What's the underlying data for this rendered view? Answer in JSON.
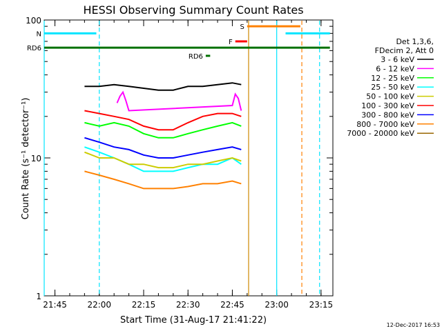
{
  "chart_data": {
    "type": "line",
    "title": "HESSI Observing Summary Count Rates",
    "xlabel": "Start Time (31-Aug-17 21:41:22)",
    "ylabel": "Count Rate (s⁻¹ detector⁻¹)",
    "y_scale": "log",
    "ylim": [
      1,
      100
    ],
    "xlim": [
      "21:41:22",
      "23:19:00"
    ],
    "x_ticks": [
      "21:45",
      "22:00",
      "22:15",
      "22:30",
      "22:45",
      "23:00",
      "23:15"
    ],
    "y_ticks": [
      "1",
      "10",
      "100"
    ],
    "grid": false,
    "legend_position": "right",
    "legend_header": [
      "Det 1,3,6,",
      "FDecim 2, Att 0"
    ],
    "series": [
      {
        "name": "3 - 6 keV",
        "color": "#000000",
        "x": [
          "21:55",
          "22:00",
          "22:05",
          "22:10",
          "22:15",
          "22:20",
          "22:25",
          "22:30",
          "22:35",
          "22:40",
          "22:45",
          "22:48"
        ],
        "values": [
          33,
          33,
          34,
          33,
          32,
          31,
          31,
          33,
          33,
          34,
          35,
          34
        ]
      },
      {
        "name": "6 - 12 keV",
        "color": "#ff00ff",
        "x": [
          "22:06",
          "22:07",
          "22:08",
          "22:09",
          "22:10",
          "22:45",
          "22:46",
          "22:47",
          "22:48"
        ],
        "values": [
          25,
          28,
          30,
          26,
          22,
          24,
          29,
          27,
          22
        ]
      },
      {
        "name": "12 - 25 keV",
        "color": "#00ff00",
        "x": [
          "21:55",
          "22:00",
          "22:05",
          "22:10",
          "22:15",
          "22:20",
          "22:25",
          "22:30",
          "22:35",
          "22:40",
          "22:45",
          "22:48"
        ],
        "values": [
          18,
          17,
          18,
          17,
          15,
          14,
          14,
          15,
          16,
          17,
          18,
          17
        ]
      },
      {
        "name": "25 - 50 keV",
        "color": "#00ffff",
        "x": [
          "21:55",
          "22:00",
          "22:05",
          "22:10",
          "22:15",
          "22:20",
          "22:25",
          "22:30",
          "22:35",
          "22:40",
          "22:45",
          "22:48"
        ],
        "values": [
          12,
          11,
          10,
          9,
          8,
          8,
          8,
          8.5,
          9,
          9,
          10,
          9
        ]
      },
      {
        "name": "50 - 100 keV",
        "color": "#cccc00",
        "x": [
          "21:55",
          "22:00",
          "22:05",
          "22:10",
          "22:15",
          "22:20",
          "22:25",
          "22:30",
          "22:35",
          "22:40",
          "22:45",
          "22:48"
        ],
        "values": [
          11,
          10,
          10,
          9,
          9,
          8.5,
          8.5,
          9,
          9,
          9.5,
          10,
          9.5
        ]
      },
      {
        "name": "100 - 300 keV",
        "color": "#ff0000",
        "x": [
          "21:55",
          "22:00",
          "22:05",
          "22:10",
          "22:15",
          "22:20",
          "22:25",
          "22:30",
          "22:35",
          "22:40",
          "22:45",
          "22:48"
        ],
        "values": [
          22,
          21,
          20,
          19,
          17,
          16,
          16,
          18,
          20,
          21,
          21,
          20
        ]
      },
      {
        "name": "300 - 800 keV",
        "color": "#0000ff",
        "x": [
          "21:55",
          "22:00",
          "22:05",
          "22:10",
          "22:15",
          "22:20",
          "22:25",
          "22:30",
          "22:35",
          "22:40",
          "22:45",
          "22:48"
        ],
        "values": [
          14,
          13,
          12,
          11.5,
          10.5,
          10,
          10,
          10.5,
          11,
          11.5,
          12,
          11.5
        ]
      },
      {
        "name": "800 - 7000 keV",
        "color": "#ff8000",
        "x": [
          "21:55",
          "22:00",
          "22:05",
          "22:10",
          "22:15",
          "22:20",
          "22:25",
          "22:30",
          "22:35",
          "22:40",
          "22:45",
          "22:48"
        ],
        "values": [
          8,
          7.5,
          7,
          6.5,
          6,
          6,
          6,
          6.2,
          6.5,
          6.5,
          6.8,
          6.5
        ]
      },
      {
        "name": "7000 - 20000 keV",
        "color": "#996600",
        "x": [],
        "values": []
      }
    ],
    "flags": [
      {
        "label": "N",
        "color": "#00e5ff",
        "y": 80,
        "x_start": "21:41:22",
        "x_end": "21:59:00"
      },
      {
        "label": "",
        "color": "#00e5ff",
        "y": 80,
        "x_start": "23:03:00",
        "x_end": "23:18:00"
      },
      {
        "label": "S",
        "color": "#ff8000",
        "y": 90,
        "x_start": "22:50:00",
        "x_end": "23:08:00"
      },
      {
        "label": "F",
        "color": "#ff0000",
        "y": 70,
        "x_start": "22:46:00",
        "x_end": "22:50:00"
      },
      {
        "label": "RD6",
        "color": "#007000",
        "y": 63,
        "x_start": "21:41:22",
        "x_end": "23:18:00"
      },
      {
        "label": "RD6",
        "color": "#007000",
        "y": 55,
        "x_start": "22:36:00",
        "x_end": "22:37:30"
      }
    ],
    "vertical_markers": [
      {
        "x": "21:41:22",
        "color": "#00e5ff",
        "style": "solid"
      },
      {
        "x": "22:00:00",
        "color": "#00e5ff",
        "style": "dashed"
      },
      {
        "x": "22:50:30",
        "color": "#cc8800",
        "style": "solid"
      },
      {
        "x": "23:00:00",
        "color": "#00e5ff",
        "style": "solid"
      },
      {
        "x": "23:08:30",
        "color": "#ff8000",
        "style": "dashed"
      },
      {
        "x": "23:14:30",
        "color": "#00e5ff",
        "style": "dashed"
      }
    ],
    "footer_date": "12-Dec-2017 16:53"
  }
}
